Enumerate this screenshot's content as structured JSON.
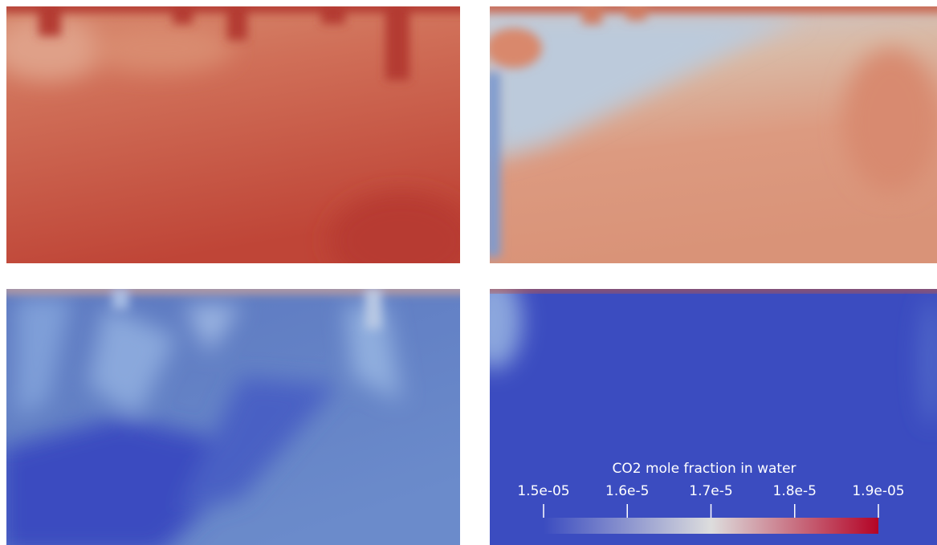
{
  "colorbar": {
    "title": "CO2 mole fraction in water",
    "lim": [
      1.5e-05,
      1.9e-05
    ],
    "ticks": [
      {
        "value": 1.5e-05,
        "label": "1.5e-05"
      },
      {
        "value": 1.6e-05,
        "label": "1.6e-5"
      },
      {
        "value": 1.7e-05,
        "label": "1.7e-5"
      },
      {
        "value": 1.8e-05,
        "label": "1.8e-5"
      },
      {
        "value": 1.9e-05,
        "label": "1.9e-05"
      }
    ]
  }
}
